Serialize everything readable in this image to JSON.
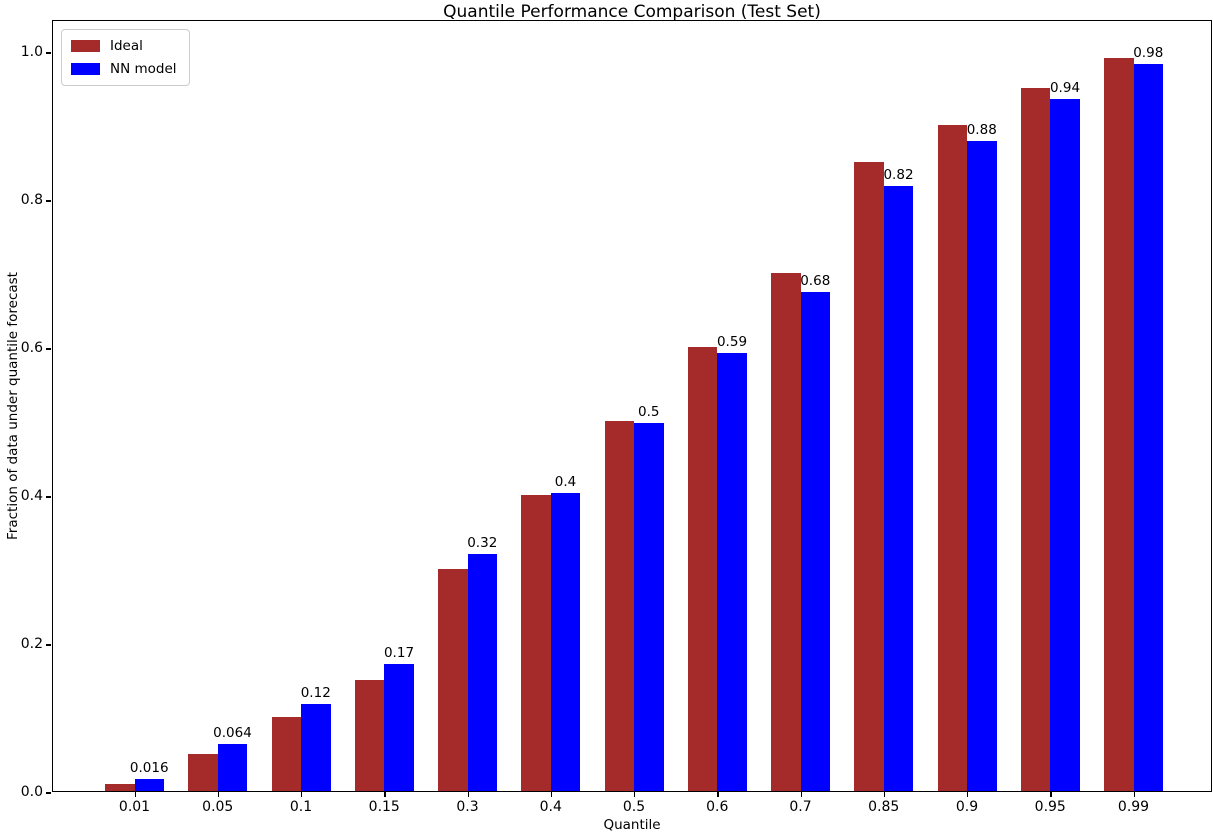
{
  "chart_data": {
    "type": "bar",
    "title": "Quantile Performance Comparison (Test Set)",
    "xlabel": "Quantile",
    "ylabel": "Fraction of data under quantile forecast",
    "categories": [
      "0.01",
      "0.05",
      "0.1",
      "0.15",
      "0.3",
      "0.4",
      "0.5",
      "0.6",
      "0.7",
      "0.85",
      "0.9",
      "0.95",
      "0.99"
    ],
    "series": [
      {
        "name": "Ideal",
        "color": "#A52A2A",
        "values": [
          0.01,
          0.05,
          0.1,
          0.15,
          0.3,
          0.4,
          0.5,
          0.6,
          0.7,
          0.85,
          0.9,
          0.95,
          0.99
        ]
      },
      {
        "name": "NN model",
        "color": "#0000FF",
        "values": [
          0.016,
          0.064,
          0.117,
          0.171,
          0.32,
          0.403,
          0.497,
          0.592,
          0.675,
          0.818,
          0.878,
          0.935,
          0.983
        ],
        "labels": [
          "0.016",
          "0.064",
          "0.12",
          "0.17",
          "0.32",
          "0.4",
          "0.5",
          "0.59",
          "0.68",
          "0.82",
          "0.88",
          "0.94",
          "0.98"
        ]
      }
    ],
    "yticks": [
      "0.0",
      "0.2",
      "0.4",
      "0.6",
      "0.8",
      "1.0"
    ],
    "ylim": [
      0.0,
      1.043
    ],
    "xlim_note": "13 categorical slots",
    "legend_position": "upper left",
    "grid": false,
    "colors": {
      "ideal": "#A52A2A",
      "nn_model": "#0000FF",
      "spine": "#000000",
      "text": "#000000",
      "legend_border": "#cccccc",
      "background": "#ffffff"
    }
  }
}
